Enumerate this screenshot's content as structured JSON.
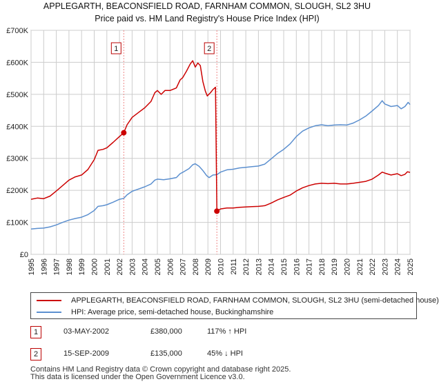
{
  "title": {
    "line1": "APPLEGARTH, BEACONSFIELD ROAD, FARNHAM COMMON, SLOUGH, SL2 3HU",
    "line2": "Price paid vs. HM Land Registry's House Price Index (HPI)"
  },
  "colors": {
    "property": "#cc0000",
    "hpi": "#5b8fcf",
    "vline": "#e88",
    "grid": "#cccccc"
  },
  "chart_data": {
    "type": "line",
    "title": "Price paid vs. HM Land Registry's House Price Index (HPI)",
    "xlabel": "",
    "ylabel": "",
    "xlim": [
      1995,
      2025
    ],
    "ylim": [
      0,
      700000
    ],
    "yticks": [
      {
        "value": 0,
        "label": "£0"
      },
      {
        "value": 100000,
        "label": "£100K"
      },
      {
        "value": 200000,
        "label": "£200K"
      },
      {
        "value": 300000,
        "label": "£300K"
      },
      {
        "value": 400000,
        "label": "£400K"
      },
      {
        "value": 500000,
        "label": "£500K"
      },
      {
        "value": 600000,
        "label": "£600K"
      },
      {
        "value": 700000,
        "label": "£700K"
      }
    ],
    "xticks": [
      "1995",
      "1996",
      "1997",
      "1998",
      "1999",
      "2000",
      "2001",
      "2002",
      "2003",
      "2004",
      "2005",
      "2006",
      "2007",
      "2008",
      "2009",
      "2010",
      "2011",
      "2012",
      "2013",
      "2014",
      "2015",
      "2016",
      "2017",
      "2018",
      "2019",
      "2020",
      "2021",
      "2022",
      "2023",
      "2024",
      "2025"
    ],
    "grid": true,
    "series": [
      {
        "name": "APPLEGARTH, BEACONSFIELD ROAD, FARNHAM COMMON, SLOUGH, SL2 3HU (semi-detached house)",
        "color": "#cc0000",
        "points": [
          [
            1995.0,
            172000
          ],
          [
            1995.5,
            176000
          ],
          [
            1996.0,
            174000
          ],
          [
            1996.5,
            182000
          ],
          [
            1997.0,
            198000
          ],
          [
            1997.5,
            215000
          ],
          [
            1998.0,
            232000
          ],
          [
            1998.5,
            242000
          ],
          [
            1999.0,
            248000
          ],
          [
            1999.5,
            265000
          ],
          [
            2000.0,
            296000
          ],
          [
            2000.3,
            325000
          ],
          [
            2000.7,
            328000
          ],
          [
            2001.0,
            333000
          ],
          [
            2001.5,
            350000
          ],
          [
            2002.0,
            368000
          ],
          [
            2002.34,
            380000
          ],
          [
            2002.6,
            405000
          ],
          [
            2003.0,
            428000
          ],
          [
            2003.5,
            443000
          ],
          [
            2004.0,
            458000
          ],
          [
            2004.5,
            478000
          ],
          [
            2004.8,
            505000
          ],
          [
            2005.0,
            512000
          ],
          [
            2005.3,
            500000
          ],
          [
            2005.6,
            512000
          ],
          [
            2006.0,
            512000
          ],
          [
            2006.5,
            520000
          ],
          [
            2006.8,
            545000
          ],
          [
            2007.0,
            552000
          ],
          [
            2007.3,
            572000
          ],
          [
            2007.6,
            595000
          ],
          [
            2007.8,
            605000
          ],
          [
            2008.0,
            585000
          ],
          [
            2008.2,
            598000
          ],
          [
            2008.4,
            590000
          ],
          [
            2008.6,
            540000
          ],
          [
            2008.8,
            510000
          ],
          [
            2008.95,
            495000
          ],
          [
            2009.2,
            505000
          ],
          [
            2009.4,
            515000
          ],
          [
            2009.6,
            522000
          ],
          [
            2009.71,
            135000
          ],
          [
            2010.0,
            142000
          ],
          [
            2010.5,
            145000
          ],
          [
            2011.0,
            145000
          ],
          [
            2011.5,
            147000
          ],
          [
            2012.0,
            148000
          ],
          [
            2012.5,
            149000
          ],
          [
            2013.0,
            150000
          ],
          [
            2013.5,
            152000
          ],
          [
            2014.0,
            160000
          ],
          [
            2014.5,
            170000
          ],
          [
            2015.0,
            178000
          ],
          [
            2015.5,
            185000
          ],
          [
            2016.0,
            198000
          ],
          [
            2016.5,
            208000
          ],
          [
            2017.0,
            215000
          ],
          [
            2017.5,
            220000
          ],
          [
            2018.0,
            222000
          ],
          [
            2018.5,
            221000
          ],
          [
            2019.0,
            222000
          ],
          [
            2019.5,
            220000
          ],
          [
            2020.0,
            220000
          ],
          [
            2020.5,
            222000
          ],
          [
            2021.0,
            225000
          ],
          [
            2021.5,
            228000
          ],
          [
            2022.0,
            235000
          ],
          [
            2022.5,
            248000
          ],
          [
            2022.8,
            257000
          ],
          [
            2023.0,
            254000
          ],
          [
            2023.5,
            248000
          ],
          [
            2024.0,
            252000
          ],
          [
            2024.3,
            246000
          ],
          [
            2024.6,
            250000
          ],
          [
            2024.8,
            258000
          ],
          [
            2025.0,
            256000
          ]
        ]
      },
      {
        "name": "HPI: Average price, semi-detached house, Buckinghamshire",
        "color": "#5b8fcf",
        "points": [
          [
            1995.0,
            79000
          ],
          [
            1995.5,
            81000
          ],
          [
            1996.0,
            82000
          ],
          [
            1996.5,
            86000
          ],
          [
            1997.0,
            92000
          ],
          [
            1997.5,
            100000
          ],
          [
            1998.0,
            107000
          ],
          [
            1998.5,
            112000
          ],
          [
            1999.0,
            116000
          ],
          [
            1999.5,
            124000
          ],
          [
            2000.0,
            137000
          ],
          [
            2000.3,
            150000
          ],
          [
            2000.7,
            152000
          ],
          [
            2001.0,
            155000
          ],
          [
            2001.5,
            163000
          ],
          [
            2002.0,
            172000
          ],
          [
            2002.34,
            175000
          ],
          [
            2002.6,
            186000
          ],
          [
            2003.0,
            197000
          ],
          [
            2003.5,
            204000
          ],
          [
            2004.0,
            211000
          ],
          [
            2004.5,
            220000
          ],
          [
            2004.8,
            232000
          ],
          [
            2005.0,
            235000
          ],
          [
            2005.5,
            233000
          ],
          [
            2006.0,
            236000
          ],
          [
            2006.5,
            240000
          ],
          [
            2006.8,
            252000
          ],
          [
            2007.0,
            256000
          ],
          [
            2007.5,
            268000
          ],
          [
            2007.8,
            280000
          ],
          [
            2008.0,
            283000
          ],
          [
            2008.3,
            275000
          ],
          [
            2008.6,
            262000
          ],
          [
            2008.9,
            246000
          ],
          [
            2009.1,
            240000
          ],
          [
            2009.4,
            248000
          ],
          [
            2009.71,
            249000
          ],
          [
            2010.0,
            257000
          ],
          [
            2010.5,
            264000
          ],
          [
            2011.0,
            266000
          ],
          [
            2011.5,
            270000
          ],
          [
            2012.0,
            272000
          ],
          [
            2012.5,
            274000
          ],
          [
            2013.0,
            276000
          ],
          [
            2013.5,
            282000
          ],
          [
            2014.0,
            298000
          ],
          [
            2014.5,
            315000
          ],
          [
            2015.0,
            328000
          ],
          [
            2015.5,
            345000
          ],
          [
            2016.0,
            368000
          ],
          [
            2016.5,
            385000
          ],
          [
            2017.0,
            395000
          ],
          [
            2017.5,
            402000
          ],
          [
            2018.0,
            405000
          ],
          [
            2018.5,
            402000
          ],
          [
            2019.0,
            404000
          ],
          [
            2019.5,
            405000
          ],
          [
            2020.0,
            404000
          ],
          [
            2020.5,
            410000
          ],
          [
            2021.0,
            420000
          ],
          [
            2021.5,
            432000
          ],
          [
            2022.0,
            448000
          ],
          [
            2022.5,
            465000
          ],
          [
            2022.8,
            480000
          ],
          [
            2023.0,
            470000
          ],
          [
            2023.5,
            462000
          ],
          [
            2024.0,
            465000
          ],
          [
            2024.3,
            455000
          ],
          [
            2024.6,
            462000
          ],
          [
            2024.85,
            475000
          ],
          [
            2025.0,
            468000
          ]
        ]
      }
    ],
    "sales": [
      {
        "id": "1",
        "x": 2002.34,
        "value": 380000
      },
      {
        "id": "2",
        "x": 2009.71,
        "value": 135000
      }
    ]
  },
  "legend": {
    "property_label": "APPLEGARTH, BEACONSFIELD ROAD, FARNHAM COMMON, SLOUGH, SL2 3HU (semi-detached house)",
    "hpi_label": "HPI: Average price, semi-detached house, Buckinghamshire"
  },
  "sales_table": [
    {
      "id": "1",
      "date": "03-MAY-2002",
      "price": "£380,000",
      "hpi": "117% ↑ HPI"
    },
    {
      "id": "2",
      "date": "15-SEP-2009",
      "price": "£135,000",
      "hpi": "45% ↓ HPI"
    }
  ],
  "footer": {
    "line1": "Contains HM Land Registry data © Crown copyright and database right 2025.",
    "line2": "This data is licensed under the Open Government Licence v3.0."
  }
}
